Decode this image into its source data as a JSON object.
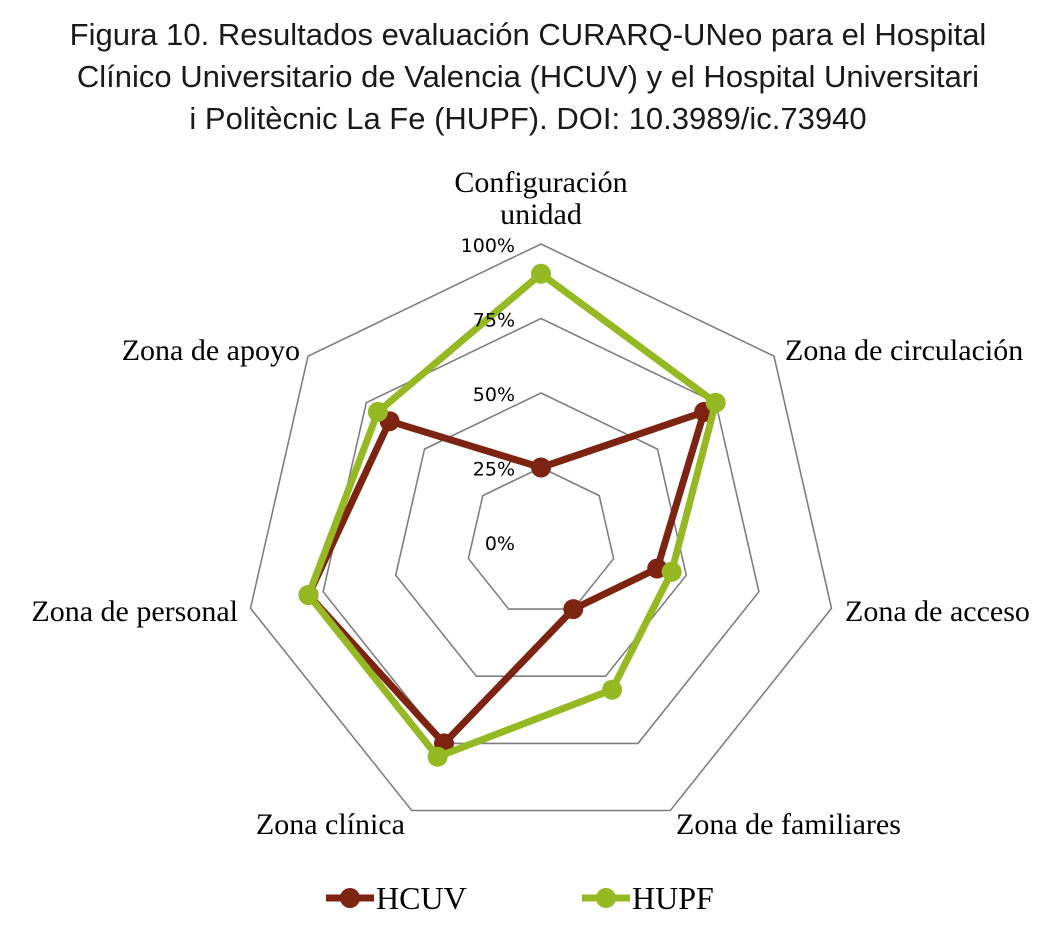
{
  "figure": {
    "title_lines": [
      "Figura 10. Resultados evaluación CURARQ-UNeo para el Hospital",
      "Clínico Universitario de Valencia (HCUV) y el Hospital Universitari",
      "i Politècnic La Fe (HUPF). DOI: 10.3989/ic.73940"
    ]
  },
  "chart_data": {
    "type": "radar",
    "categories": [
      [
        "Configuración",
        "unidad"
      ],
      [
        "Zona de circulación"
      ],
      [
        "Zona de acceso"
      ],
      [
        "Zona de familiares"
      ],
      [
        "Zona clínica"
      ],
      [
        "Zona de personal"
      ],
      [
        "Zona de apoyo"
      ]
    ],
    "ticks": [
      "0%",
      "25%",
      "50%",
      "75%",
      "100%"
    ],
    "range": [
      0,
      100
    ],
    "series": [
      {
        "name": "HCUV",
        "color": "#7d2311",
        "values": [
          25,
          70,
          40,
          25,
          75,
          80,
          65
        ]
      },
      {
        "name": "HUPF",
        "color": "#95b823",
        "values": [
          90,
          75,
          45,
          55,
          80,
          80,
          70
        ]
      }
    ],
    "legend_position": "bottom"
  }
}
